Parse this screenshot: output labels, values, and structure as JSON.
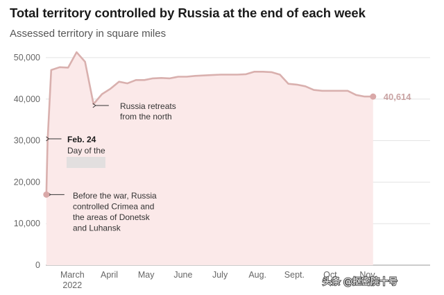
{
  "chart_data": {
    "type": "area",
    "title": "Total territory controlled by Russia at the end of each week",
    "subtitle": "Assessed territory in square miles",
    "ylim": [
      0,
      50000
    ],
    "y_ticks": [
      0,
      10000,
      20000,
      30000,
      40000,
      50000
    ],
    "y_tick_labels": [
      "0",
      "10,000",
      "20,000",
      "30,000",
      "40,000",
      "50,000"
    ],
    "x_tick_labels": [
      "March\n2022",
      "April",
      "May",
      "June",
      "July",
      "Aug.",
      "Sept.",
      "Oct.",
      "Nov."
    ],
    "grid": true,
    "colors": {
      "line": "#d9b0ae",
      "fill": "#fbe9e9",
      "point": "#d9a8a8",
      "end_label": "#c9a3a3"
    },
    "series": [
      {
        "x": [
          "2022-02-23",
          "2022-02-24",
          "2022-02-27",
          "2022-03-06",
          "2022-03-13",
          "2022-03-20",
          "2022-03-27",
          "2022-04-03",
          "2022-04-10",
          "2022-04-17",
          "2022-04-24",
          "2022-05-01",
          "2022-05-08",
          "2022-05-15",
          "2022-05-22",
          "2022-05-29",
          "2022-06-05",
          "2022-06-12",
          "2022-06-19",
          "2022-06-26",
          "2022-07-03",
          "2022-07-10",
          "2022-07-17",
          "2022-07-24",
          "2022-07-31",
          "2022-08-07",
          "2022-08-14",
          "2022-08-21",
          "2022-08-28",
          "2022-09-04",
          "2022-09-11",
          "2022-09-18",
          "2022-09-25",
          "2022-10-02",
          "2022-10-09",
          "2022-10-16",
          "2022-10-23",
          "2022-10-30",
          "2022-11-06",
          "2022-11-13",
          "2022-11-20"
        ],
        "values": [
          17000,
          30000,
          47000,
          47700,
          47600,
          51300,
          49000,
          38800,
          41200,
          42500,
          44200,
          43800,
          44600,
          44600,
          45000,
          45100,
          45000,
          45400,
          45400,
          45600,
          45700,
          45800,
          45900,
          45900,
          45900,
          46000,
          46600,
          46600,
          46500,
          45900,
          43700,
          43500,
          43100,
          42200,
          42000,
          42000,
          42000,
          42000,
          41000,
          40614,
          40614
        ]
      }
    ],
    "points": [
      {
        "x": "2022-02-23",
        "value": 17000
      },
      {
        "x": "2022-11-20",
        "value": 40614
      }
    ],
    "end_label": "40,614",
    "annotations": [
      {
        "x": "2022-02-24",
        "lines": [
          "Feb. 24",
          "Day of the"
        ]
      },
      {
        "x": "2022-02-23",
        "lines": [
          "Before the war, Russia",
          "controlled Crimea and",
          "the areas of Donetsk",
          "and Luhansk"
        ]
      },
      {
        "x": "2022-04-03",
        "lines": [
          "Russia retreats",
          "from the north"
        ]
      }
    ]
  },
  "watermark": "头条 @抠密院十号"
}
